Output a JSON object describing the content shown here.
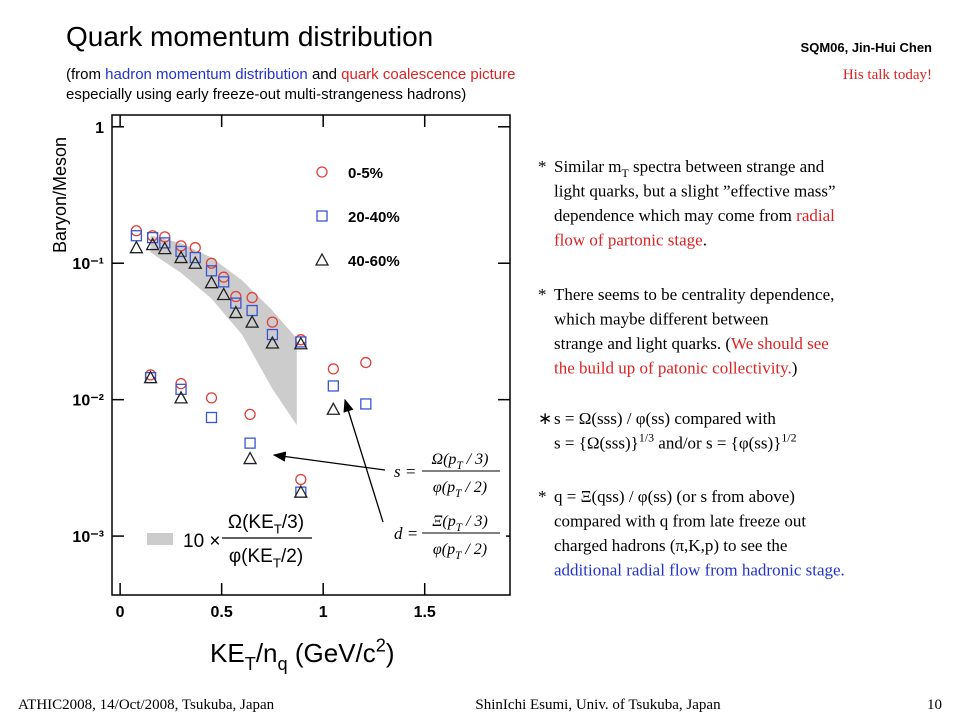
{
  "header": {
    "title": "Quark momentum distribution",
    "subtitle_lines": [
      [
        {
          "text": "(from "
        },
        {
          "text": "hadron momentum distribution",
          "color": "#2233cc"
        },
        {
          "text": " and "
        },
        {
          "text": "quark coalescence picture",
          "color": "#dd2222"
        }
      ],
      [
        {
          "text": "especially using early freeze-out multi-strangeness hadrons)"
        }
      ]
    ],
    "reference": "SQM06, Jin-Hui Chen",
    "note": "His talk today!"
  },
  "chart_data": {
    "type": "scatter",
    "ylabel": "Baryon/Meson",
    "xlabel": [
      {
        "text": "KE"
      },
      {
        "text": "T",
        "sub": true
      },
      {
        "text": "/n"
      },
      {
        "text": "q",
        "sub": true
      },
      {
        "text": " (GeV/c"
      },
      {
        "text": "2",
        "sup": true
      },
      {
        "text": ")"
      }
    ],
    "xlim": [
      -0.04,
      1.92
    ],
    "ylim": [
      0.00037,
      1.22
    ],
    "log_y": true,
    "xticks": [
      0,
      0.5,
      1,
      1.5
    ],
    "yticks": [
      {
        "value": 0.001,
        "label": "10⁻³"
      },
      {
        "value": 0.01,
        "label": "10⁻²"
      },
      {
        "value": 0.1,
        "label": "10⁻¹"
      },
      1
    ],
    "series": [
      {
        "name": "0-5%",
        "color": "#e0403a",
        "marker": "circle",
        "s": {
          "x": [
            0.08,
            0.16,
            0.22,
            0.3,
            0.37,
            0.45,
            0.51,
            0.57,
            0.65,
            0.75,
            0.89,
            1.05,
            1.21
          ],
          "values": [
            0.173,
            0.159,
            0.156,
            0.134,
            0.13,
            0.1,
            0.079,
            0.057,
            0.056,
            0.037,
            0.0275,
            0.0168,
            0.0187
          ]
        },
        "d": {
          "x": [
            0.15,
            0.3,
            0.45,
            0.64,
            0.89
          ],
          "values": [
            0.0152,
            0.0131,
            0.0103,
            0.0078,
            0.0026
          ]
        }
      },
      {
        "name": "20-40%",
        "color": "#3a55d0",
        "marker": "square",
        "s": {
          "x": [
            0.08,
            0.16,
            0.22,
            0.3,
            0.37,
            0.45,
            0.51,
            0.57,
            0.65,
            0.75,
            0.89,
            1.05,
            1.21
          ],
          "values": [
            0.159,
            0.154,
            0.141,
            0.122,
            0.11,
            0.088,
            0.073,
            0.051,
            0.045,
            0.03,
            0.0265,
            0.0126,
            0.0093
          ]
        },
        "d": {
          "x": [
            0.15,
            0.3,
            0.45,
            0.64,
            0.89
          ],
          "values": [
            0.0145,
            0.0119,
            0.0074,
            0.0048,
            0.0021
          ]
        }
      },
      {
        "name": "40-60%",
        "color": "#222222",
        "marker": "triangle",
        "s": {
          "x": [
            0.08,
            0.16,
            0.22,
            0.3,
            0.37,
            0.45,
            0.51,
            0.57,
            0.65,
            0.75,
            0.89,
            1.05
          ],
          "values": [
            0.13,
            0.137,
            0.128,
            0.11,
            0.1,
            0.072,
            0.059,
            0.0435,
            0.037,
            0.026,
            0.0257,
            0.0085
          ]
        },
        "d": {
          "x": [
            0.15,
            0.3,
            0.64,
            0.89
          ],
          "values": [
            0.0145,
            0.0103,
            0.0037,
            0.0021
          ]
        }
      }
    ],
    "band": {
      "color": "#cccccc",
      "x": [
        0.15,
        0.3,
        0.45,
        0.6,
        0.75,
        0.87
      ],
      "upper": [
        0.16,
        0.14,
        0.11,
        0.075,
        0.045,
        0.028
      ],
      "lower": [
        0.12,
        0.085,
        0.055,
        0.03,
        0.012,
        0.0065
      ]
    },
    "band_label": {
      "factor": "10 ×",
      "numerator": [
        {
          "text": "Ω(KE"
        },
        {
          "text": "T",
          "sub": true
        },
        {
          "text": "/3)"
        }
      ],
      "denominator": [
        {
          "text": "φ(KE"
        },
        {
          "text": "T",
          "sub": true
        },
        {
          "text": "/2)"
        }
      ]
    }
  },
  "formulas": [
    {
      "lhs": "s =",
      "numerator": [
        {
          "text": "Ω(p"
        },
        {
          "text": "T",
          "sub": true
        },
        {
          "text": " / 3)"
        }
      ],
      "denominator": [
        {
          "text": "φ(p"
        },
        {
          "text": "T",
          "sub": true
        },
        {
          "text": " / 2)"
        }
      ]
    },
    {
      "lhs": "d =",
      "numerator": [
        {
          "text": "Ξ(p"
        },
        {
          "text": "T",
          "sub": true
        },
        {
          "text": " / 3)"
        }
      ],
      "denominator": [
        {
          "text": "φ(p"
        },
        {
          "text": "T",
          "sub": true
        },
        {
          "text": " / 2)"
        }
      ]
    }
  ],
  "bullets": [
    {
      "marker": "*",
      "lines": [
        [
          {
            "text": "Similar m"
          },
          {
            "text": "T",
            "sub": true
          },
          {
            "text": " spectra between strange and"
          }
        ],
        [
          {
            "text": "light quarks, but a slight ”effective mass”"
          }
        ],
        [
          {
            "text": "dependence which may come from "
          },
          {
            "text": "radial",
            "color": "#dd2222"
          }
        ],
        [
          {
            "text": "flow of partonic stage",
            "color": "#dd2222"
          },
          {
            "text": "."
          }
        ]
      ]
    },
    {
      "marker": "*",
      "lines": [
        [
          {
            "text": "There seems to be centrality dependence,"
          }
        ],
        [
          {
            "text": "which maybe different between"
          }
        ],
        [
          {
            "text": "strange and light quarks. ("
          },
          {
            "text": "We should see",
            "color": "#dd2222"
          }
        ],
        [
          {
            "text": "the build up of patonic collectivity.",
            "color": "#dd2222"
          },
          {
            "text": ")"
          }
        ]
      ]
    },
    {
      "marker": "∗",
      "lines": [
        [
          {
            "text": "s = Ω(sss) / φ(ss) compared with"
          }
        ],
        [
          {
            "text": "s = {Ω(sss)}"
          },
          {
            "text": "1/3",
            "sup": true
          },
          {
            "text": " and/or s = {φ(ss)}"
          },
          {
            "text": "1/2",
            "sup": true
          }
        ]
      ]
    },
    {
      "marker": "*",
      "lines": [
        [
          {
            "text": "q = Ξ(qss) / φ(ss) (or s from above)"
          }
        ],
        [
          {
            "text": "compared with q from late freeze out"
          }
        ],
        [
          {
            "text": "charged hadrons (π,K,p) to see the"
          }
        ],
        [
          {
            "text": "additional radial flow from hadronic stage.",
            "color": "#2233cc"
          }
        ]
      ]
    }
  ],
  "footer": {
    "left": "ATHIC2008, 14/Oct/2008, Tsukuba, Japan",
    "center": "ShinIchi Esumi, Univ. of Tsukuba, Japan",
    "page": "10"
  }
}
